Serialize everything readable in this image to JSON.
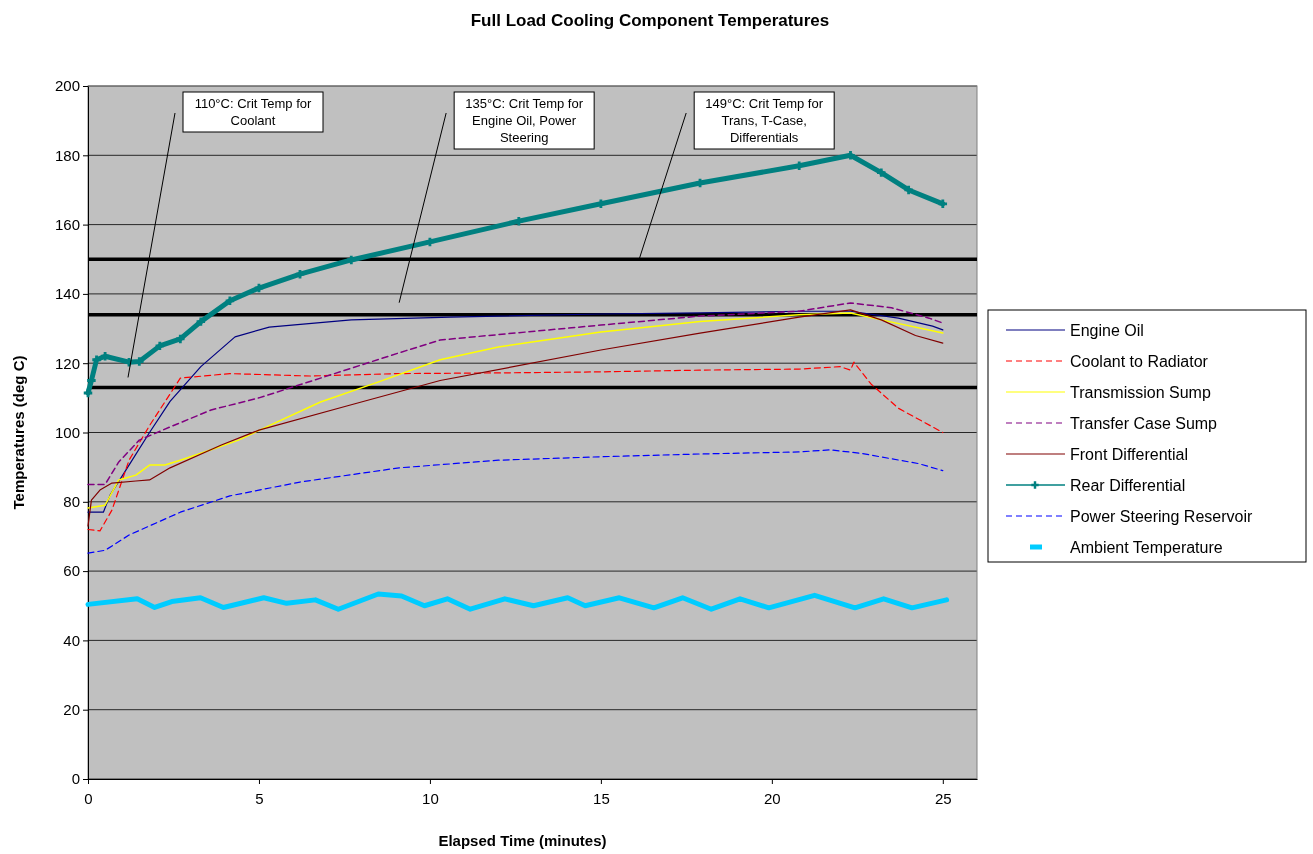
{
  "chart_data": {
    "type": "line",
    "title": "Full Load Cooling Component Temperatures",
    "xlabel": "Elapsed Time (minutes)",
    "ylabel": "Temperatures (deg C)",
    "xlim": [
      0,
      26
    ],
    "xticks": [
      0,
      5,
      10,
      15,
      20,
      25
    ],
    "ylim": [
      0,
      200
    ],
    "yticks": [
      0,
      20,
      40,
      60,
      80,
      100,
      120,
      140,
      160,
      180,
      200
    ],
    "grid": "y",
    "legend": "right",
    "series": [
      {
        "name": "Engine Oil",
        "color": "#000080",
        "line_style": "solid",
        "x": [
          0,
          0.45,
          0.65,
          1.2,
          1.8,
          2.4,
          3.3,
          4.3,
          5.3,
          7.7,
          10.6,
          15,
          17.9,
          20.8,
          22.3,
          23.7,
          24.7,
          25
        ],
        "values": [
          77,
          77,
          82,
          90.6,
          100,
          109,
          119,
          127.6,
          130.4,
          132.5,
          133.3,
          134.2,
          134.5,
          135,
          135,
          133,
          130.7,
          129.6
        ]
      },
      {
        "name": "Coolant to Radiator",
        "color": "#ff0000",
        "line_style": "dashed",
        "x": [
          0,
          0.35,
          0.7,
          1.2,
          1.8,
          2.7,
          4.15,
          6.5,
          9.1,
          12,
          15,
          17.9,
          20.8,
          22,
          22.3,
          22.4,
          22.9,
          23.7,
          25
        ],
        "values": [
          72,
          71.6,
          77.6,
          92,
          102,
          115.7,
          117,
          116.3,
          117,
          117.2,
          117.5,
          118,
          118.3,
          119,
          118,
          120.3,
          114,
          107,
          100
        ]
      },
      {
        "name": "Transmission Sump",
        "color": "#ffff00",
        "line_style": "solid",
        "x": [
          0,
          0.5,
          0.9,
          1.4,
          1.8,
          2.25,
          2.7,
          3.6,
          4.4,
          5.3,
          6.8,
          8.5,
          10.3,
          12,
          15,
          17.9,
          20.8,
          22.3,
          23.2,
          25
        ],
        "values": [
          78.2,
          79,
          86.3,
          87.7,
          90.6,
          90.6,
          92,
          95,
          97.8,
          102,
          108.8,
          114.6,
          121,
          124.7,
          129,
          132,
          134,
          134.5,
          132.5,
          128.7
        ]
      },
      {
        "name": "Transfer Case Sump",
        "color": "#800080",
        "line_style": "dashed",
        "x": [
          0,
          0.5,
          0.9,
          1.5,
          2.4,
          3.6,
          5,
          6.8,
          9.1,
          10.3,
          15,
          17.9,
          20.8,
          22.3,
          23.5,
          24.6,
          25
        ],
        "values": [
          85,
          85,
          91.5,
          97.8,
          101.6,
          106.5,
          110,
          115.7,
          123,
          126.7,
          131,
          133.6,
          135,
          137.4,
          136,
          133,
          131.6
        ]
      },
      {
        "name": "Front Differential",
        "color": "#800000",
        "line_style": "solid",
        "x": [
          0,
          0.1,
          0.35,
          0.7,
          1.4,
          1.8,
          2.4,
          3.9,
          5,
          7.7,
          10.3,
          15,
          17.9,
          20.8,
          22.3,
          23.2,
          24.2,
          25
        ],
        "values": [
          73,
          80.5,
          83.4,
          85.4,
          86,
          86.3,
          89.8,
          96.4,
          100.7,
          108,
          115,
          123.8,
          128.7,
          133.3,
          135.4,
          132.5,
          128,
          125.8
        ]
      },
      {
        "name": "Rear Differential",
        "color": "#008080",
        "line_style": "solid",
        "marker": "cross",
        "x": [
          0,
          0.1,
          0.25,
          0.5,
          1.2,
          1.5,
          2.1,
          2.7,
          3.3,
          4.15,
          5,
          6.2,
          7.7,
          10,
          12.6,
          15,
          17.9,
          20.8,
          22.3,
          23.2,
          24,
          25
        ],
        "values": [
          111.4,
          115,
          121,
          122,
          120.3,
          120.5,
          125,
          127,
          132,
          138,
          141.7,
          145.7,
          149.8,
          155,
          161,
          166,
          172,
          177,
          180,
          175,
          170,
          166
        ]
      },
      {
        "name": "Power Steering Reservoir",
        "color": "#0000ff",
        "line_style": "dashed",
        "x": [
          0,
          0.5,
          1.2,
          2.7,
          4.15,
          6.2,
          9.1,
          12,
          15,
          17.9,
          20.8,
          21.7,
          22.6,
          24.3,
          25
        ],
        "values": [
          65.2,
          66,
          70.4,
          77,
          81.7,
          85.7,
          89.8,
          92,
          93,
          93.8,
          94.4,
          95,
          94,
          91,
          89
        ]
      },
      {
        "name": "Ambient Temperature",
        "color": "#00ccff",
        "line_style": "solid",
        "x": [
          0,
          1.44,
          1.95,
          2.45,
          3.29,
          3.96,
          5.14,
          5.81,
          6.65,
          7.32,
          8.49,
          9.17,
          9.84,
          10.51,
          11.18,
          12.19,
          13.03,
          14.03,
          14.54,
          15.54,
          16.55,
          17.39,
          18.23,
          19.07,
          19.91,
          21.25,
          22.43,
          23.27,
          24.1,
          25.11
        ],
        "values": [
          50.4,
          52,
          49.5,
          51.2,
          52.3,
          49.5,
          52.3,
          50.7,
          51.7,
          49,
          53.4,
          52.8,
          50,
          52,
          49,
          52,
          50,
          52.3,
          50,
          52.3,
          49.4,
          52.3,
          49,
          52,
          49.4,
          53,
          49.4,
          52,
          49.4,
          51.7
        ]
      }
    ],
    "ref_lines": [
      {
        "axis": "y",
        "value": 113,
        "color": "#000000"
      },
      {
        "axis": "y",
        "value": 134,
        "color": "#000000"
      },
      {
        "axis": "y",
        "value": 150,
        "color": "#000000"
      }
    ],
    "annotations": [
      "110°C: Crit Temp for Coolant",
      "135°C: Crit Temp for Engine Oil, Power Steering",
      "149°C: Crit Temp for Trans, T-Case, Differentials"
    ]
  }
}
